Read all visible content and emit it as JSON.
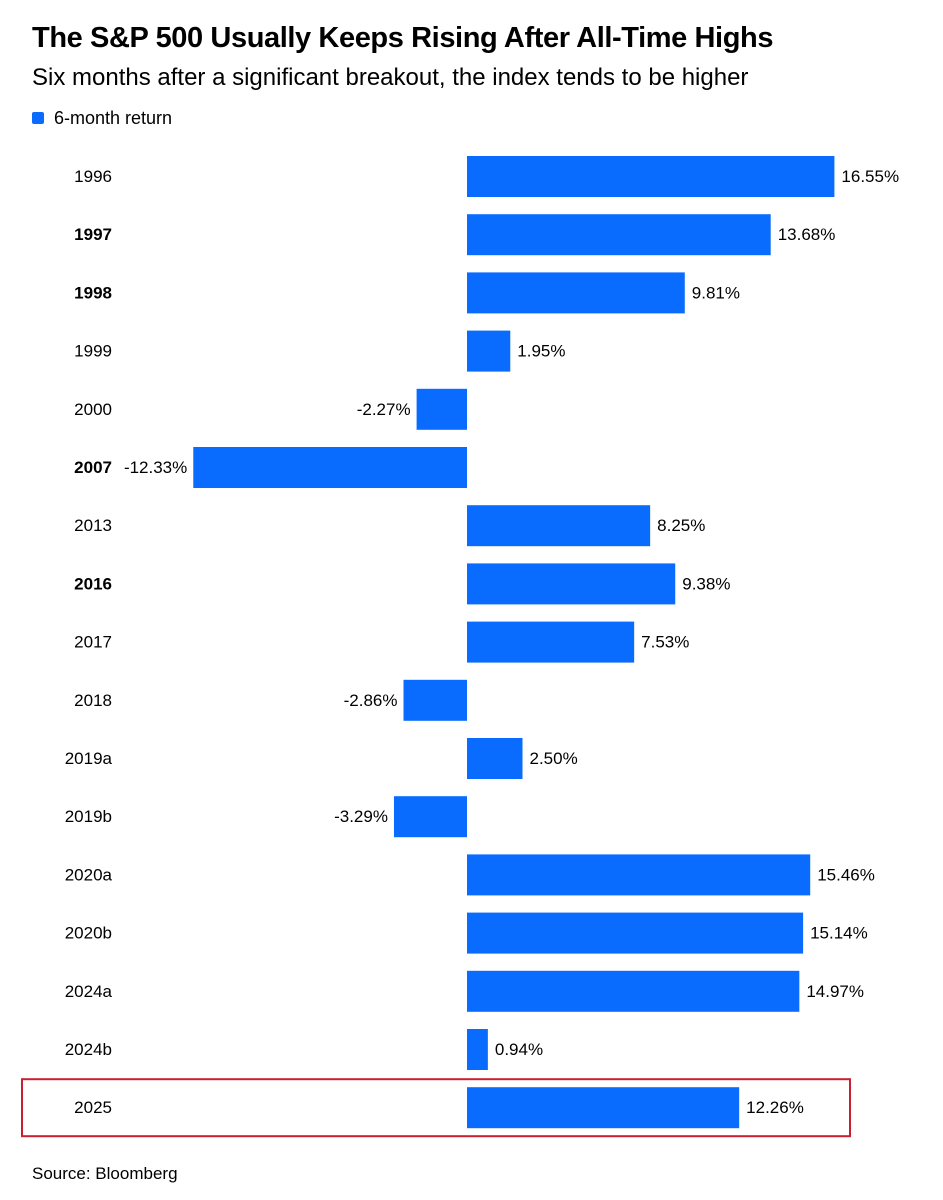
{
  "title": "The S&P 500 Usually Keeps Rising After All-Time Highs",
  "subtitle": "Six months after a significant breakout, the index tends to be higher",
  "legend": {
    "label": "6-month return",
    "color": "#0a6cff"
  },
  "source": "Source: Bloomberg",
  "colors": {
    "bar": "#0a6cff",
    "highlight_border": "#c8202f",
    "text": "#000000"
  },
  "chart_data": {
    "type": "bar",
    "orientation": "horizontal",
    "title": "The S&P 500 Usually Keeps Rising After All-Time Highs",
    "subtitle": "Six months after a significant breakout, the index tends to be higher",
    "categories": [
      "1996",
      "1997",
      "1998",
      "1999",
      "2000",
      "2007",
      "2013",
      "2016",
      "2017",
      "2018",
      "2019a",
      "2019b",
      "2020a",
      "2020b",
      "2024a",
      "2024b",
      "2025"
    ],
    "bold_categories": [
      "1997",
      "1998",
      "2007",
      "2016"
    ],
    "series": [
      {
        "name": "6-month return",
        "values": [
          16.55,
          13.68,
          9.81,
          1.95,
          -2.27,
          -12.33,
          8.25,
          9.38,
          7.53,
          -2.86,
          2.5,
          -3.29,
          15.46,
          15.14,
          14.97,
          0.94,
          12.26
        ],
        "labels": [
          "16.55%",
          "13.68%",
          "9.81%",
          "1.95%",
          "-2.27%",
          "-12.33%",
          "8.25%",
          "9.38%",
          "7.53%",
          "-2.86%",
          "2.50%",
          "-3.29%",
          "15.46%",
          "15.14%",
          "14.97%",
          "0.94%",
          "12.26%"
        ]
      }
    ],
    "highlighted_category": "2025",
    "xlim": [
      -12.33,
      16.55
    ],
    "grid": false,
    "legend_position": "top-left",
    "xlabel": "",
    "ylabel": ""
  }
}
